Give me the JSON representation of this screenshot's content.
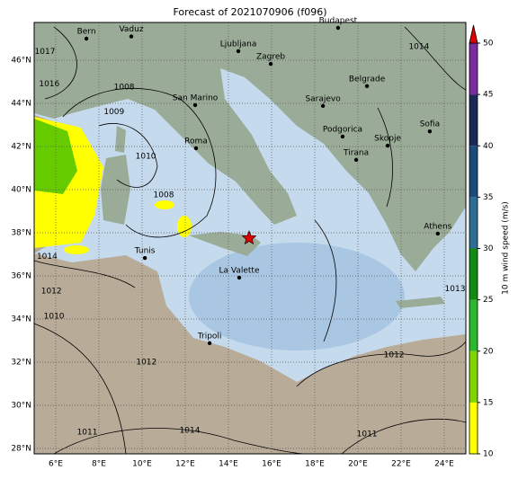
{
  "title": "Forecast of 2021070906 (f096)",
  "map": {
    "lon_ticks": [
      {
        "value": 6,
        "label": "6°E"
      },
      {
        "value": 8,
        "label": "8°E"
      },
      {
        "value": 10,
        "label": "10°E"
      },
      {
        "value": 12,
        "label": "12°E"
      },
      {
        "value": 14,
        "label": "14°E"
      },
      {
        "value": 16,
        "label": "16°E"
      },
      {
        "value": 18,
        "label": "18°E"
      },
      {
        "value": 20,
        "label": "20°E"
      },
      {
        "value": 22,
        "label": "22°E"
      },
      {
        "value": 24,
        "label": "24°E"
      }
    ],
    "lat_ticks": [
      {
        "value": 28,
        "label": "28°N"
      },
      {
        "value": 30,
        "label": "30°N"
      },
      {
        "value": 32,
        "label": "32°N"
      },
      {
        "value": 34,
        "label": "34°N"
      },
      {
        "value": 36,
        "label": "36°N"
      },
      {
        "value": 38,
        "label": "38°N"
      },
      {
        "value": 40,
        "label": "40°N"
      },
      {
        "value": 42,
        "label": "42°N"
      },
      {
        "value": 44,
        "label": "44°N"
      },
      {
        "value": 46,
        "label": "46°N"
      }
    ],
    "lonlim": [
      5,
      25
    ],
    "latlim": [
      27.75,
      47.75
    ],
    "cities": [
      {
        "name": "Bern",
        "lon": 7.42,
        "lat": 47.0
      },
      {
        "name": "Vaduz",
        "lon": 9.5,
        "lat": 47.1
      },
      {
        "name": "Budapest",
        "lon": 19.08,
        "lat": 47.5
      },
      {
        "name": "Ljubljana",
        "lon": 14.46,
        "lat": 46.42
      },
      {
        "name": "Zagreb",
        "lon": 15.96,
        "lat": 45.83
      },
      {
        "name": "Belgrade",
        "lon": 20.42,
        "lat": 44.8
      },
      {
        "name": "San Marino",
        "lon": 12.46,
        "lat": 43.92
      },
      {
        "name": "Sarajevo",
        "lon": 18.38,
        "lat": 43.88
      },
      {
        "name": "Sofia",
        "lon": 23.33,
        "lat": 42.7
      },
      {
        "name": "Podgorica",
        "lon": 19.29,
        "lat": 42.46
      },
      {
        "name": "Skopje",
        "lon": 21.38,
        "lat": 42.04
      },
      {
        "name": "Roma",
        "lon": 12.5,
        "lat": 41.92
      },
      {
        "name": "Tirana",
        "lon": 19.92,
        "lat": 41.38
      },
      {
        "name": "Athens",
        "lon": 23.7,
        "lat": 37.96
      },
      {
        "name": "Tunis",
        "lon": 10.13,
        "lat": 36.83
      },
      {
        "name": "La Valette",
        "lon": 14.5,
        "lat": 35.92
      },
      {
        "name": "Tripoli",
        "lon": 13.13,
        "lat": 32.88
      }
    ],
    "star": {
      "lon": 14.96,
      "lat": 37.75,
      "color": "#e00000"
    },
    "isobar_labels": [
      {
        "text": "1008",
        "lon": 9.17,
        "lat": 44.75
      },
      {
        "text": "1009",
        "lon": 8.7,
        "lat": 43.6
      },
      {
        "text": "1010",
        "lon": 10.17,
        "lat": 41.54
      },
      {
        "text": "1008",
        "lon": 11.0,
        "lat": 39.75
      },
      {
        "text": "1010",
        "lon": 5.92,
        "lat": 34.13
      },
      {
        "text": "1012",
        "lon": 21.67,
        "lat": 32.33
      },
      {
        "text": "1014",
        "lon": 12.21,
        "lat": 28.83
      },
      {
        "text": "1011",
        "lon": 7.46,
        "lat": 28.75
      },
      {
        "text": "1011",
        "lon": 20.42,
        "lat": 28.67
      },
      {
        "text": "1014",
        "lon": 22.83,
        "lat": 46.63
      },
      {
        "text": "1017",
        "lon": 5.5,
        "lat": 46.4
      },
      {
        "text": "1016",
        "lon": 5.7,
        "lat": 44.9
      },
      {
        "text": "1014",
        "lon": 5.6,
        "lat": 36.9
      },
      {
        "text": "1012",
        "lon": 5.8,
        "lat": 35.3
      },
      {
        "text": "1012",
        "lon": 10.2,
        "lat": 32.0
      },
      {
        "text": "1013",
        "lon": 24.5,
        "lat": 35.4
      }
    ]
  },
  "colorbar": {
    "label": "10 m wind speed (m/s)",
    "lim": [
      10,
      50
    ],
    "ticks": [
      10,
      15,
      20,
      25,
      30,
      35,
      40,
      45,
      50
    ],
    "colors": [
      "#ffff00",
      "#80d400",
      "#2cb82c",
      "#108a10",
      "#2d6e96",
      "#1d4a7c",
      "#1c2858",
      "#7a2ca0"
    ],
    "extend_color": "#e00000"
  }
}
